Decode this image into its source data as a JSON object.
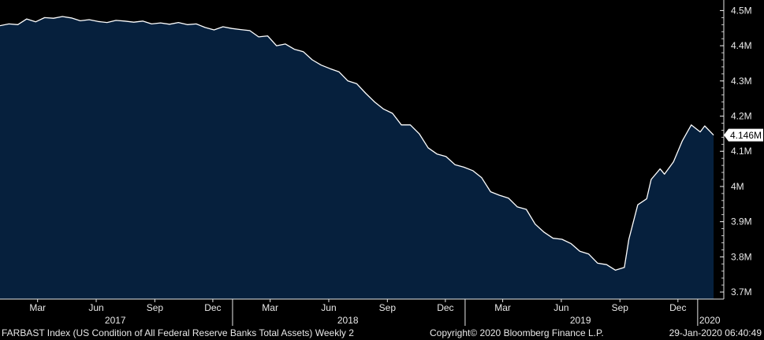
{
  "chart_data": {
    "type": "area",
    "title": "",
    "xlabel": "",
    "ylabel": "",
    "ylim": [
      3.68,
      4.53
    ],
    "y_ticks": [
      3.7,
      3.8,
      3.9,
      4.0,
      4.1,
      4.2,
      4.3,
      4.4,
      4.5
    ],
    "y_tick_labels": [
      "3.7M",
      "3.8M",
      "3.9M",
      "4M",
      "4.1M",
      "4.2M",
      "4.3M",
      "4.4M",
      "4.5M"
    ],
    "last_value_label": "4.146M",
    "x_start": "2017-01-01",
    "x_end": "2020-02-11",
    "month_ticks": [
      {
        "date": "2017-03-01",
        "label": "Mar"
      },
      {
        "date": "2017-06-01",
        "label": "Jun"
      },
      {
        "date": "2017-09-01",
        "label": "Sep"
      },
      {
        "date": "2017-12-01",
        "label": "Dec"
      },
      {
        "date": "2018-03-01",
        "label": "Mar"
      },
      {
        "date": "2018-06-01",
        "label": "Jun"
      },
      {
        "date": "2018-09-01",
        "label": "Sep"
      },
      {
        "date": "2018-12-01",
        "label": "Dec"
      },
      {
        "date": "2019-03-01",
        "label": "Mar"
      },
      {
        "date": "2019-06-01",
        "label": "Jun"
      },
      {
        "date": "2019-09-01",
        "label": "Sep"
      },
      {
        "date": "2019-12-01",
        "label": "Dec"
      }
    ],
    "year_labels": [
      {
        "date": "2017-07-01",
        "label": "2017"
      },
      {
        "date": "2018-07-01",
        "label": "2018"
      },
      {
        "date": "2019-07-01",
        "label": "2019"
      },
      {
        "date": "2020-01-20",
        "label": "2020"
      }
    ],
    "year_boundaries": [
      "2018-01-01",
      "2019-01-01",
      "2020-01-01"
    ],
    "series": [
      {
        "points": [
          [
            "2017-01-01",
            4.457
          ],
          [
            "2017-01-15",
            4.462
          ],
          [
            "2017-01-29",
            4.46
          ],
          [
            "2017-02-12",
            4.476
          ],
          [
            "2017-02-26",
            4.468
          ],
          [
            "2017-03-12",
            4.48
          ],
          [
            "2017-03-26",
            4.478
          ],
          [
            "2017-04-09",
            4.483
          ],
          [
            "2017-04-23",
            4.479
          ],
          [
            "2017-05-07",
            4.471
          ],
          [
            "2017-05-21",
            4.474
          ],
          [
            "2017-06-04",
            4.469
          ],
          [
            "2017-06-18",
            4.466
          ],
          [
            "2017-07-02",
            4.472
          ],
          [
            "2017-07-16",
            4.47
          ],
          [
            "2017-07-30",
            4.467
          ],
          [
            "2017-08-13",
            4.47
          ],
          [
            "2017-08-27",
            4.462
          ],
          [
            "2017-09-10",
            4.465
          ],
          [
            "2017-09-24",
            4.461
          ],
          [
            "2017-10-08",
            4.466
          ],
          [
            "2017-10-22",
            4.46
          ],
          [
            "2017-11-05",
            4.462
          ],
          [
            "2017-11-19",
            4.452
          ],
          [
            "2017-12-03",
            4.445
          ],
          [
            "2017-12-17",
            4.454
          ],
          [
            "2017-12-31",
            4.449
          ],
          [
            "2018-01-14",
            4.446
          ],
          [
            "2018-01-28",
            4.443
          ],
          [
            "2018-02-11",
            4.425
          ],
          [
            "2018-02-25",
            4.428
          ],
          [
            "2018-03-11",
            4.4
          ],
          [
            "2018-03-25",
            4.405
          ],
          [
            "2018-04-08",
            4.39
          ],
          [
            "2018-04-22",
            4.383
          ],
          [
            "2018-05-06",
            4.36
          ],
          [
            "2018-05-20",
            4.345
          ],
          [
            "2018-06-03",
            4.335
          ],
          [
            "2018-06-17",
            4.326
          ],
          [
            "2018-07-01",
            4.3
          ],
          [
            "2018-07-15",
            4.292
          ],
          [
            "2018-07-29",
            4.265
          ],
          [
            "2018-08-12",
            4.24
          ],
          [
            "2018-08-26",
            4.22
          ],
          [
            "2018-09-09",
            4.208
          ],
          [
            "2018-09-23",
            4.175
          ],
          [
            "2018-10-07",
            4.175
          ],
          [
            "2018-10-21",
            4.15
          ],
          [
            "2018-11-04",
            4.11
          ],
          [
            "2018-11-18",
            4.092
          ],
          [
            "2018-12-02",
            4.085
          ],
          [
            "2018-12-16",
            4.062
          ],
          [
            "2018-12-30",
            4.055
          ],
          [
            "2019-01-13",
            4.045
          ],
          [
            "2019-01-27",
            4.025
          ],
          [
            "2019-02-10",
            3.985
          ],
          [
            "2019-02-24",
            3.975
          ],
          [
            "2019-03-10",
            3.967
          ],
          [
            "2019-03-24",
            3.942
          ],
          [
            "2019-04-07",
            3.935
          ],
          [
            "2019-04-21",
            3.893
          ],
          [
            "2019-05-05",
            3.87
          ],
          [
            "2019-05-19",
            3.853
          ],
          [
            "2019-06-02",
            3.85
          ],
          [
            "2019-06-16",
            3.838
          ],
          [
            "2019-06-30",
            3.816
          ],
          [
            "2019-07-14",
            3.808
          ],
          [
            "2019-07-28",
            3.782
          ],
          [
            "2019-08-11",
            3.778
          ],
          [
            "2019-08-25",
            3.762
          ],
          [
            "2019-09-08",
            3.77
          ],
          [
            "2019-09-15",
            3.85
          ],
          [
            "2019-09-29",
            3.948
          ],
          [
            "2019-10-13",
            3.965
          ],
          [
            "2019-10-20",
            4.02
          ],
          [
            "2019-11-03",
            4.05
          ],
          [
            "2019-11-10",
            4.035
          ],
          [
            "2019-11-24",
            4.07
          ],
          [
            "2019-12-08",
            4.13
          ],
          [
            "2019-12-22",
            4.175
          ],
          [
            "2020-01-05",
            4.155
          ],
          [
            "2020-01-12",
            4.172
          ],
          [
            "2020-01-26",
            4.146
          ]
        ]
      }
    ]
  },
  "footer": {
    "index_description": "FARBAST Index (US Condition of All Federal Reserve Banks Total Assets)  Weekly 2",
    "copyright": "Copyright© 2020 Bloomberg Finance L.P.",
    "timestamp": "29-Jan-2020 06:40:49"
  },
  "colors": {
    "background": "#000000",
    "area_fill": "#06203d",
    "line": "#ffffff",
    "axis_text": "#e8e8e8",
    "last_value_bg": "#ffffff",
    "last_value_text": "#000000"
  }
}
